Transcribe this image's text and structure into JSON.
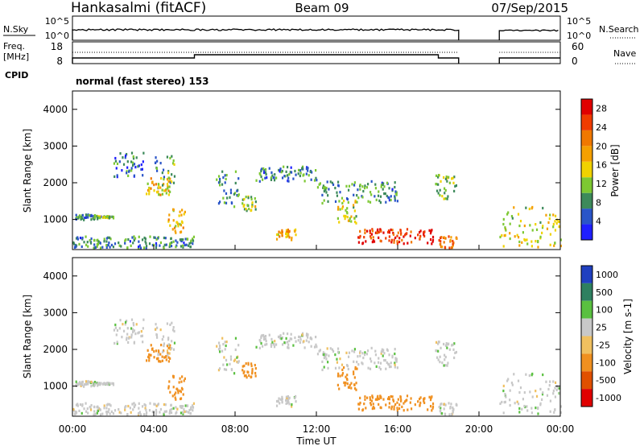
{
  "header": {
    "station": "Hankasalmi (fitACF)",
    "beam": "Beam 09",
    "date": "07/Sep/2015"
  },
  "strip_labels": {
    "nsky": "N.Sky",
    "nsky_ticks": [
      "10^5",
      "10^0"
    ],
    "nsearch": "N.Search",
    "nsearch_ticks": [
      "10^5",
      "10^0"
    ],
    "freq_top": "Freq.",
    "freq_unit": "[MHz]",
    "freq_ticks": [
      "18",
      "8"
    ],
    "nave": "Nave",
    "nave_ticks": [
      "60",
      "0"
    ],
    "cpid": "CPID",
    "cpid_value": "normal (fast stereo) 153"
  },
  "panels": {
    "power": {
      "ylabel": "Slant Range [km]",
      "ytick_labels": [
        "1000",
        "2000",
        "3000",
        "4000"
      ],
      "colorbar_label": "Power [dB]",
      "colorbar_ticks": [
        "4",
        "8",
        "12",
        "16",
        "20",
        "24",
        "28"
      ],
      "colors": [
        "#1f1fff",
        "#2a55c8",
        "#3d8a5a",
        "#7dc832",
        "#f0d200",
        "#f5a000",
        "#f07800",
        "#f03c00",
        "#e00000"
      ]
    },
    "velocity": {
      "ylabel": "Slant Range [km]",
      "ytick_labels": [
        "1000",
        "2000",
        "3000",
        "4000"
      ],
      "colorbar_label": "Velocity [m s-1]",
      "colorbar_ticks": [
        "1000",
        "500",
        "100",
        "25",
        "-25",
        "-100",
        "-500",
        "-1000"
      ],
      "colors": [
        "#2040c0",
        "#2e8060",
        "#5ac040",
        "#c8c8c8",
        "#f0c060",
        "#f09020",
        "#e05000",
        "#e00000"
      ]
    }
  },
  "xaxis": {
    "label": "Time UT",
    "tick_labels": [
      "00:00",
      "04:00",
      "08:00",
      "12:00",
      "16:00",
      "20:00",
      "00:00"
    ]
  },
  "chart_data": {
    "type": "heatmap",
    "title": "Hankasalmi (fitACF)",
    "subtitle": "Beam 09",
    "xlabel": "Time UT",
    "ylabel": "Slant Range [km]",
    "xlim_hours": [
      0,
      24
    ],
    "ylim_km": [
      180,
      4500
    ],
    "data_gap_hours": [
      19,
      21
    ],
    "power_colorbar": {
      "label": "Power [dB]",
      "range": [
        0,
        30
      ],
      "ticks": [
        4,
        8,
        12,
        16,
        20,
        24,
        28
      ]
    },
    "velocity_colorbar": {
      "label": "Velocity [m s-1]",
      "ticks": [
        1000,
        500,
        100,
        25,
        -25,
        -100,
        -500,
        -1000
      ]
    },
    "scatter_regions": [
      {
        "t": [
          0.0,
          1.5
        ],
        "r": [
          950,
          1100
        ],
        "power": 8,
        "velocity": 0
      },
      {
        "t": [
          1.0,
          2.0
        ],
        "r": [
          1000,
          1050
        ],
        "power": 12,
        "velocity": 0
      },
      {
        "t": [
          0.0,
          6.0
        ],
        "r": [
          180,
          500
        ],
        "power": 8,
        "velocity": 0
      },
      {
        "t": [
          2.0,
          3.5
        ],
        "r": [
          2100,
          2800
        ],
        "power": 6,
        "velocity": 0
      },
      {
        "t": [
          3.5,
          4.8
        ],
        "r": [
          1600,
          2100
        ],
        "power": 16,
        "velocity": -300
      },
      {
        "t": [
          4.0,
          5.0
        ],
        "r": [
          1800,
          2700
        ],
        "power": 10,
        "velocity": 0
      },
      {
        "t": [
          4.6,
          5.5
        ],
        "r": [
          600,
          1300
        ],
        "power": 16,
        "velocity": -400
      },
      {
        "t": [
          7.0,
          8.2
        ],
        "r": [
          1300,
          2300
        ],
        "power": 8,
        "velocity": 0
      },
      {
        "t": [
          8.3,
          9.0
        ],
        "r": [
          1200,
          1600
        ],
        "power": 12,
        "velocity": -300
      },
      {
        "t": [
          10.0,
          11.0
        ],
        "r": [
          400,
          700
        ],
        "power": 18,
        "velocity": 0
      },
      {
        "t": [
          9.0,
          12.0
        ],
        "r": [
          2000,
          2400
        ],
        "power": 8,
        "velocity": 0
      },
      {
        "t": [
          12.0,
          16.0
        ],
        "r": [
          1400,
          2000
        ],
        "power": 8,
        "velocity": 0
      },
      {
        "t": [
          13.0,
          14.0
        ],
        "r": [
          800,
          1500
        ],
        "power": 14,
        "velocity": -300
      },
      {
        "t": [
          14.0,
          17.8
        ],
        "r": [
          300,
          700
        ],
        "power": 26,
        "velocity": -200
      },
      {
        "t": [
          17.8,
          18.9
        ],
        "r": [
          1500,
          2200
        ],
        "power": 12,
        "velocity": 0
      },
      {
        "t": [
          18.0,
          18.9
        ],
        "r": [
          180,
          500
        ],
        "power": 22,
        "velocity": 0
      },
      {
        "t": [
          21.0,
          24.0
        ],
        "r": [
          180,
          1300
        ],
        "power": 14,
        "velocity": 0
      }
    ]
  }
}
